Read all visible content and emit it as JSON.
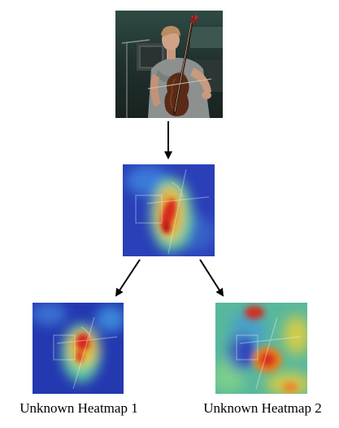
{
  "captions": {
    "left": "Unknown Heatmap 1",
    "right": "Unknown Heatmap 2"
  },
  "images": {
    "source": "photo-cellist-icon",
    "main": "heatmap-icon",
    "left": "heatmap-icon",
    "right": "heatmap-icon"
  },
  "colors": {
    "heat_low": "#2a3fb8",
    "heat_mid": "#58c2a0",
    "heat_high": "#d62a1e",
    "arrow": "#000000"
  }
}
